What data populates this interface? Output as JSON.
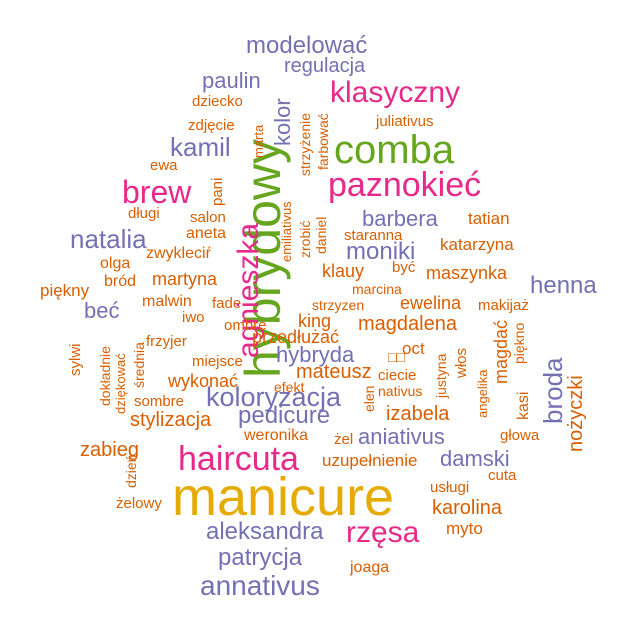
{
  "colors": {
    "orange": "#d95f02",
    "purple": "#7570b3",
    "magenta": "#e7298a",
    "green": "#66a61e",
    "gold": "#e6ab02"
  },
  "words": [
    {
      "text": "manicure",
      "color": "gold"
    },
    {
      "text": "hybrydowy",
      "color": "green"
    },
    {
      "text": "comba",
      "color": "green"
    },
    {
      "text": "agnieszka",
      "color": "magenta"
    },
    {
      "text": "paznokieć",
      "color": "magenta"
    },
    {
      "text": "haircuta",
      "color": "magenta"
    },
    {
      "text": "rzęsa",
      "color": "magenta"
    },
    {
      "text": "klasyczny",
      "color": "magenta"
    },
    {
      "text": "brew",
      "color": "magenta"
    },
    {
      "text": "koloryzacja",
      "color": "purple"
    },
    {
      "text": "pedicure",
      "color": "purple"
    },
    {
      "text": "hybryda",
      "color": "purple"
    },
    {
      "text": "modelować",
      "color": "purple"
    },
    {
      "text": "annativus",
      "color": "purple"
    },
    {
      "text": "broda",
      "color": "purple"
    },
    {
      "text": "henna",
      "color": "purple"
    },
    {
      "text": "aniativus",
      "color": "purple"
    },
    {
      "text": "damski",
      "color": "purple"
    },
    {
      "text": "aleksandra",
      "color": "purple"
    },
    {
      "text": "patrycja",
      "color": "purple"
    },
    {
      "text": "natalia",
      "color": "purple"
    },
    {
      "text": "moniki",
      "color": "purple"
    },
    {
      "text": "barbera",
      "color": "purple"
    },
    {
      "text": "kamil",
      "color": "purple"
    },
    {
      "text": "paulin",
      "color": "purple"
    },
    {
      "text": "regulacja",
      "color": "purple"
    },
    {
      "text": "kolor",
      "color": "purple"
    },
    {
      "text": "nożyczki",
      "color": "orange"
    },
    {
      "text": "magdalena",
      "color": "orange"
    },
    {
      "text": "karolina",
      "color": "orange"
    },
    {
      "text": "izabela",
      "color": "orange"
    },
    {
      "text": "stylizacja",
      "color": "orange"
    },
    {
      "text": "mateusz",
      "color": "orange"
    },
    {
      "text": "zabieg",
      "color": "orange"
    },
    {
      "text": "wykonać",
      "color": "orange"
    },
    {
      "text": "martyna",
      "color": "orange"
    },
    {
      "text": "maszynka",
      "color": "orange"
    },
    {
      "text": "ewelina",
      "color": "orange"
    },
    {
      "text": "king",
      "color": "orange"
    },
    {
      "text": "beć",
      "color": "purple"
    },
    {
      "text": "klauy",
      "color": "orange"
    },
    {
      "text": "uzupełnienie",
      "color": "orange"
    },
    {
      "text": "weronika",
      "color": "orange"
    },
    {
      "text": "magdać",
      "color": "orange"
    },
    {
      "text": "katarzyna",
      "color": "orange"
    },
    {
      "text": "tatian",
      "color": "orange"
    },
    {
      "text": "piękny",
      "color": "orange"
    },
    {
      "text": "myto",
      "color": "orange"
    },
    {
      "text": "joaga",
      "color": "orange"
    },
    {
      "text": "przedłużać",
      "color": "orange"
    },
    {
      "text": "oct",
      "color": "orange"
    },
    {
      "text": "kasi",
      "color": "orange"
    },
    {
      "text": "usługi",
      "color": "orange"
    },
    {
      "text": "cuta",
      "color": "orange"
    },
    {
      "text": "głowa",
      "color": "orange"
    },
    {
      "text": "ciecie",
      "color": "orange"
    },
    {
      "text": "nativus",
      "color": "orange"
    },
    {
      "text": "efekt",
      "color": "orange"
    },
    {
      "text": "żel",
      "color": "orange"
    },
    {
      "text": "sombre",
      "color": "orange"
    },
    {
      "text": "żelowy",
      "color": "orange"
    },
    {
      "text": "dzień",
      "color": "orange"
    },
    {
      "text": "frzyjer",
      "color": "orange"
    },
    {
      "text": "miejsce",
      "color": "orange"
    },
    {
      "text": "ombre",
      "color": "orange"
    },
    {
      "text": "fade",
      "color": "orange"
    },
    {
      "text": "iwo",
      "color": "orange"
    },
    {
      "text": "malwin",
      "color": "orange"
    },
    {
      "text": "bród",
      "color": "orange"
    },
    {
      "text": "olga",
      "color": "orange"
    },
    {
      "text": "zwykleciŕ",
      "color": "orange"
    },
    {
      "text": "aneta",
      "color": "orange"
    },
    {
      "text": "salon",
      "color": "orange"
    },
    {
      "text": "długi",
      "color": "orange"
    },
    {
      "text": "pani",
      "color": "orange"
    },
    {
      "text": "ewa",
      "color": "orange"
    },
    {
      "text": "zdjęcie",
      "color": "orange"
    },
    {
      "text": "dziecko",
      "color": "orange"
    },
    {
      "text": "juliativus",
      "color": "orange"
    },
    {
      "text": "farbować",
      "color": "orange"
    },
    {
      "text": "strzyżenie",
      "color": "orange"
    },
    {
      "text": "emiliativus",
      "color": "orange"
    },
    {
      "text": "zrobić",
      "color": "orange"
    },
    {
      "text": "daniel",
      "color": "orange"
    },
    {
      "text": "staranna",
      "color": "orange"
    },
    {
      "text": "być",
      "color": "orange"
    },
    {
      "text": "marcina",
      "color": "orange"
    },
    {
      "text": "strzyzen",
      "color": "orange"
    },
    {
      "text": "makijaż",
      "color": "orange"
    },
    {
      "text": "piękno",
      "color": "orange"
    },
    {
      "text": "włos",
      "color": "orange"
    },
    {
      "text": "angelika",
      "color": "orange"
    },
    {
      "text": "justyna",
      "color": "orange"
    },
    {
      "text": "elen",
      "color": "orange"
    },
    {
      "text": "dokładnie",
      "color": "orange"
    },
    {
      "text": "dziękować",
      "color": "orange"
    },
    {
      "text": "średnia",
      "color": "orange"
    },
    {
      "text": "sylwi",
      "color": "orange"
    },
    {
      "text": "marta",
      "color": "orange"
    },
    {
      "text": "□□",
      "color": "orange"
    }
  ]
}
